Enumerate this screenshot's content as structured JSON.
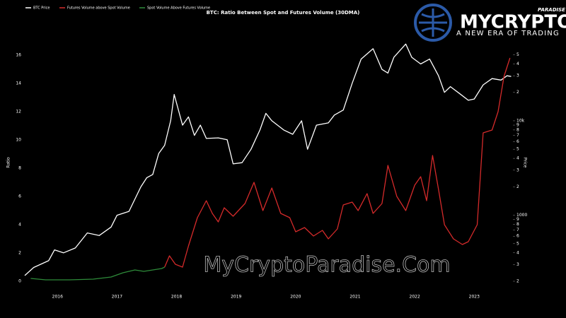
{
  "chart_data": {
    "type": "line",
    "title": "BTC: Ratio Between Spot and Futures Volume (30DMA)",
    "ylabel": "Ratio",
    "y2label": "Price",
    "annotation": "MyCryptoParadise.Com",
    "xlim": [
      2015.45,
      2023.65
    ],
    "xticks": [
      2016,
      2017,
      2018,
      2019,
      2020,
      2021,
      2022,
      2023
    ],
    "ylim": [
      0,
      17
    ],
    "yticks": [
      0,
      2,
      4,
      6,
      8,
      10,
      12,
      14,
      16
    ],
    "y2lim": [
      200,
      70000
    ],
    "y2log": true,
    "y2ticks": [
      {
        "value": 200,
        "label": "2"
      },
      {
        "value": 300,
        "label": "3"
      },
      {
        "value": 400,
        "label": "4"
      },
      {
        "value": 500,
        "label": "5"
      },
      {
        "value": 600,
        "label": "6"
      },
      {
        "value": 700,
        "label": "7"
      },
      {
        "value": 800,
        "label": "8"
      },
      {
        "value": 900,
        "label": "9"
      },
      1000,
      {
        "value": 2000,
        "label": "2"
      },
      {
        "value": 3000,
        "label": "3"
      },
      {
        "value": 4000,
        "label": "4"
      },
      {
        "value": 5000,
        "label": "5"
      },
      {
        "value": 6000,
        "label": "6"
      },
      {
        "value": 7000,
        "label": "7"
      },
      {
        "value": 8000,
        "label": "8"
      },
      {
        "value": 9000,
        "label": "9"
      },
      {
        "value": 10000,
        "label": "10k"
      },
      {
        "value": 20000,
        "label": "2"
      },
      {
        "value": 30000,
        "label": "3"
      },
      {
        "value": 40000,
        "label": "4"
      },
      {
        "value": 50000,
        "label": "5"
      }
    ],
    "series": [
      {
        "name": "BTC Price",
        "color": "#ffffff",
        "axis": "y2",
        "x": [
          2015.45,
          2015.6,
          2015.85,
          2015.95,
          2016.1,
          2016.3,
          2016.5,
          2016.7,
          2016.9,
          2017.0,
          2017.2,
          2017.4,
          2017.5,
          2017.6,
          2017.7,
          2017.8,
          2017.9,
          2017.96,
          2018.1,
          2018.2,
          2018.3,
          2018.4,
          2018.5,
          2018.7,
          2018.85,
          2018.95,
          2019.1,
          2019.25,
          2019.4,
          2019.5,
          2019.6,
          2019.8,
          2019.95,
          2020.1,
          2020.2,
          2020.35,
          2020.55,
          2020.65,
          2020.8,
          2020.95,
          2021.1,
          2021.3,
          2021.45,
          2021.55,
          2021.65,
          2021.85,
          2021.95,
          2022.1,
          2022.25,
          2022.4,
          2022.5,
          2022.6,
          2022.75,
          2022.9,
          2023.0,
          2023.15,
          2023.3,
          2023.45,
          2023.55,
          2023.62
        ],
        "values": [
          230,
          280,
          330,
          430,
          400,
          450,
          650,
          610,
          750,
          1000,
          1100,
          2000,
          2500,
          2700,
          4500,
          5500,
          10000,
          19000,
          9000,
          11000,
          7000,
          9000,
          6500,
          6600,
          6300,
          3500,
          3600,
          5000,
          8000,
          12000,
          10000,
          8000,
          7200,
          10000,
          5000,
          9000,
          9500,
          11500,
          13000,
          25000,
          45000,
          58000,
          35000,
          32000,
          47000,
          65000,
          47000,
          40000,
          45000,
          30000,
          20000,
          23000,
          19500,
          16500,
          17000,
          24000,
          28000,
          27000,
          30000,
          29500
        ]
      },
      {
        "name": "Futures Volume above Spot Volume",
        "color": "#d42a2a",
        "x": [
          2017.8,
          2017.88,
          2017.98,
          2018.1,
          2018.2,
          2018.35,
          2018.5,
          2018.6,
          2018.7,
          2018.8,
          2018.95,
          2019.15,
          2019.3,
          2019.45,
          2019.6,
          2019.75,
          2019.9,
          2020.0,
          2020.15,
          2020.3,
          2020.45,
          2020.55,
          2020.7,
          2020.8,
          2020.95,
          2021.05,
          2021.2,
          2021.3,
          2021.45,
          2021.55,
          2021.7,
          2021.85,
          2022.0,
          2022.1,
          2022.2,
          2022.3,
          2022.4,
          2022.5,
          2022.65,
          2022.8,
          2022.9,
          2023.05,
          2023.15,
          2023.3,
          2023.4,
          2023.5,
          2023.6
        ],
        "values": [
          1.0,
          1.8,
          1.2,
          1.0,
          2.5,
          4.5,
          5.7,
          4.8,
          4.2,
          5.2,
          4.6,
          5.5,
          7.0,
          5.0,
          6.6,
          4.8,
          4.5,
          3.5,
          3.8,
          3.2,
          3.6,
          3.0,
          3.7,
          5.4,
          5.6,
          5.0,
          6.2,
          4.8,
          5.5,
          8.2,
          6.0,
          5.0,
          6.8,
          7.4,
          5.7,
          8.9,
          6.5,
          4.0,
          3.0,
          2.6,
          2.8,
          4.0,
          10.5,
          10.7,
          12.0,
          14.5,
          15.8
        ]
      },
      {
        "name": "Spot Volume Above Futures Volume",
        "color": "#2e8b3a",
        "x": [
          2015.55,
          2015.8,
          2016.2,
          2016.6,
          2016.9,
          2017.1,
          2017.3,
          2017.45,
          2017.6,
          2017.75,
          2017.8
        ],
        "values": [
          0.2,
          0.1,
          0.1,
          0.15,
          0.3,
          0.6,
          0.8,
          0.7,
          0.8,
          0.9,
          1.0
        ]
      }
    ]
  },
  "branding": {
    "name": "MYCRYPTO",
    "tag": "PARADISE",
    "slogan": "A NEW ERA OF TRADING"
  }
}
